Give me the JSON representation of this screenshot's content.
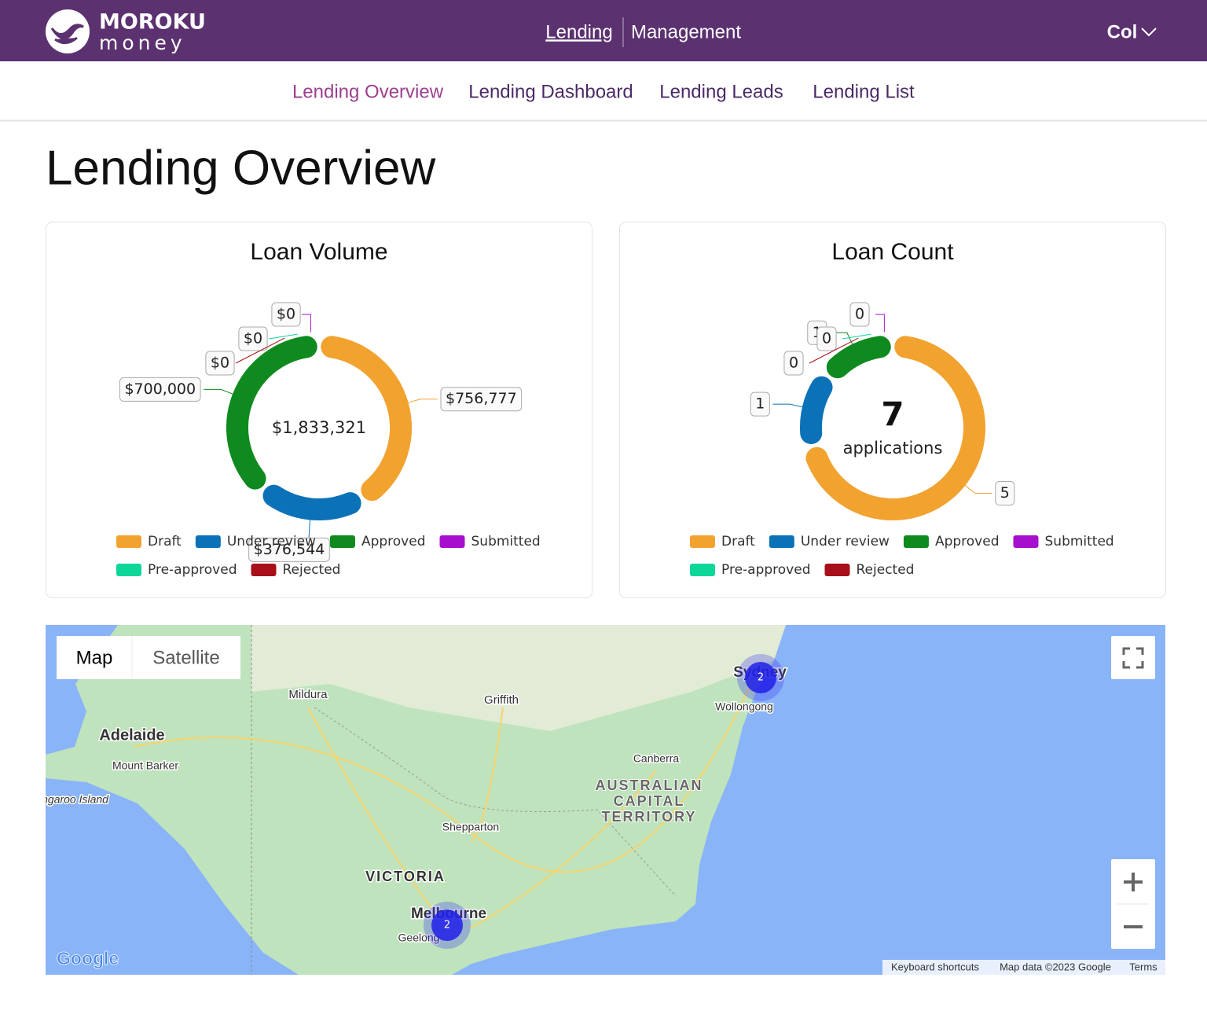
{
  "header": {
    "logo_top": "MOROKU",
    "logo_bottom": "money",
    "nav": [
      "Lending",
      "Management"
    ],
    "user": "Col"
  },
  "subnav": [
    "Lending Overview",
    "Lending Dashboard",
    "Lending Leads",
    "Lending List"
  ],
  "page_title": "Lending Overview",
  "chart_data": [
    {
      "type": "doughnut",
      "title": "Loan Volume",
      "categories": [
        "Draft",
        "Under review",
        "Approved",
        "Submitted",
        "Pre-approved",
        "Rejected"
      ],
      "values": [
        756777,
        376544,
        700000,
        0,
        0,
        0
      ],
      "value_labels": [
        "$756,777",
        "$376,544",
        "$700,000",
        "$0",
        "$0",
        "$0"
      ],
      "colors": [
        "#f2a22f",
        "#0b72b8",
        "#0e8a1e",
        "#a70fce",
        "#0cd698",
        "#a80f18"
      ],
      "center_label": "$1,833,321"
    },
    {
      "type": "doughnut",
      "title": "Loan Count",
      "categories": [
        "Draft",
        "Under review",
        "Approved",
        "Submitted",
        "Pre-approved",
        "Rejected"
      ],
      "values": [
        5,
        1,
        1,
        0,
        0,
        0
      ],
      "colors": [
        "#f2a22f",
        "#0b72b8",
        "#0e8a1e",
        "#a70fce",
        "#0cd698",
        "#a80f18"
      ],
      "center_value": 7,
      "center_label": "applications"
    }
  ],
  "map": {
    "controls": [
      "Map",
      "Satellite"
    ],
    "places": [
      "Mildura",
      "Griffith",
      "Adelaide",
      "Mount Barker",
      "Kangaroo Island",
      "Wollongong",
      "Canberra",
      "Shepparton",
      "VICTORIA",
      "Melbourne",
      "Geelong",
      "Sydney"
    ],
    "territory": [
      "AUSTRALIAN",
      "CAPITAL",
      "TERRITORY"
    ],
    "clusters": [
      2,
      2
    ],
    "logo": "Google",
    "attribution": [
      "Keyboard shortcuts",
      "Map data ©2023 Google",
      "Terms"
    ]
  }
}
